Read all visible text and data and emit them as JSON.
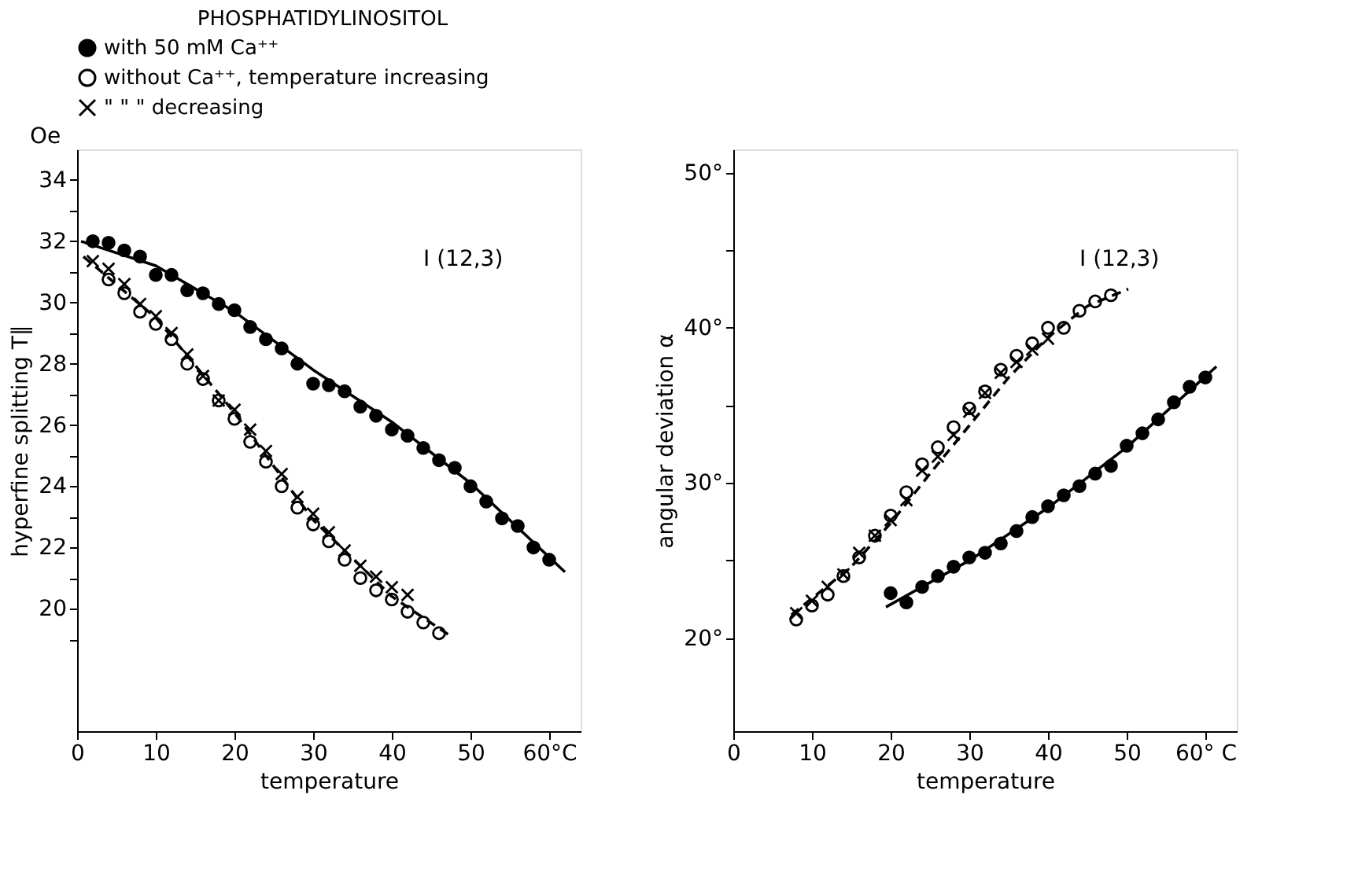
{
  "chart_data": [
    {
      "type": "scatter",
      "legend_title": "PHOSPHATIDYLINOSITOL",
      "legend": "top",
      "xlabel": "temperature",
      "ylabel": "hyperfine splitting T∥",
      "annotations": [
        "Oe",
        "I (12,3)"
      ],
      "grid": false,
      "xlim": [
        0,
        64
      ],
      "xticks": [
        0,
        10,
        20,
        30,
        40,
        50,
        {
          "value": 60,
          "label": "60°C"
        }
      ],
      "ylim": [
        16,
        35
      ],
      "yticks": [
        {
          "value": 19,
          "label": null
        },
        20,
        {
          "value": 21,
          "label": null
        },
        22,
        {
          "value": 23,
          "label": null
        },
        24,
        {
          "value": 25,
          "label": null
        },
        26,
        {
          "value": 27,
          "label": null
        },
        28,
        {
          "value": 29,
          "label": null
        },
        30,
        {
          "value": 31,
          "label": null
        },
        32,
        {
          "value": 33,
          "label": null
        },
        34
      ],
      "series": [
        {
          "type": "line",
          "line_style": "solid",
          "color": "#000000",
          "x": [
            0.5,
            10,
            20,
            30,
            40,
            50,
            62
          ],
          "values": [
            32.0,
            31.2,
            29.7,
            27.8,
            26.1,
            24.1,
            21.2
          ]
        },
        {
          "type": "line",
          "line_style": "dashed",
          "color": "#000000",
          "x": [
            0.8,
            10,
            20,
            30,
            40,
            47.5
          ],
          "values": [
            31.5,
            29.5,
            26.4,
            22.9,
            20.4,
            19.1
          ]
        },
        {
          "name": "with 50 mM Ca⁺⁺",
          "marker": "circle",
          "color": "#000000",
          "x": [
            2,
            4,
            6,
            8,
            10,
            12,
            14,
            16,
            18,
            20,
            22,
            24,
            26,
            28,
            30,
            32,
            34,
            36,
            38,
            40,
            42,
            44,
            46,
            48,
            50,
            52,
            54,
            56,
            58,
            60
          ],
          "values": [
            32.0,
            31.95,
            31.7,
            31.5,
            30.9,
            30.9,
            30.4,
            30.3,
            29.95,
            29.75,
            29.2,
            28.8,
            28.5,
            28.0,
            27.35,
            27.3,
            27.1,
            26.6,
            26.3,
            25.85,
            25.65,
            25.25,
            24.85,
            24.6,
            24.0,
            23.5,
            22.95,
            22.7,
            22.0,
            21.6
          ]
        },
        {
          "name": "without Ca⁺⁺, temperature   increasing",
          "marker": "circle-open",
          "color": "#000000",
          "x": [
            4,
            6,
            8,
            10,
            12,
            14,
            16,
            18,
            20,
            22,
            24,
            26,
            28,
            30,
            32,
            34,
            36,
            38,
            40,
            42,
            44,
            46
          ],
          "values": [
            30.75,
            30.3,
            29.7,
            29.3,
            28.8,
            28.0,
            27.5,
            26.8,
            26.2,
            25.45,
            24.8,
            24.0,
            23.3,
            22.75,
            22.2,
            21.6,
            21.0,
            20.6,
            20.3,
            19.9,
            19.55,
            19.2
          ]
        },
        {
          "name": "\"               \"                          \"         decreasing",
          "marker": "cross",
          "color": "#000000",
          "x": [
            2,
            4,
            6,
            8,
            10,
            12,
            14,
            16,
            18,
            20,
            22,
            24,
            26,
            28,
            30,
            32,
            34,
            36,
            38,
            40,
            42
          ],
          "values": [
            31.35,
            31.1,
            30.6,
            29.95,
            29.55,
            29.0,
            28.3,
            27.6,
            26.8,
            26.5,
            25.85,
            25.15,
            24.4,
            23.65,
            23.1,
            22.5,
            21.9,
            21.4,
            21.05,
            20.7,
            20.45
          ]
        }
      ]
    },
    {
      "type": "scatter",
      "xlabel": "temperature",
      "ylabel": "angular deviation α",
      "annotations": [
        "I (12,3)"
      ],
      "grid": false,
      "xlim": [
        0,
        64
      ],
      "xticks": [
        0,
        10,
        20,
        30,
        40,
        50,
        {
          "value": 60,
          "label": "60° C"
        }
      ],
      "ylim": [
        14,
        51.5
      ],
      "yticks": [
        {
          "value": 20,
          "label": "20°"
        },
        {
          "value": 25,
          "label": null
        },
        {
          "value": 30,
          "label": "30°"
        },
        {
          "value": 35,
          "label": null
        },
        {
          "value": 40,
          "label": "40°"
        },
        {
          "value": 45,
          "label": null
        },
        {
          "value": 50,
          "label": "50°"
        }
      ],
      "series": [
        {
          "type": "line",
          "line_style": "solid",
          "color": "#000000",
          "x": [
            19.4,
            30,
            40,
            50,
            61.4
          ],
          "values": [
            22.0,
            25.0,
            28.4,
            32.3,
            37.5
          ]
        },
        {
          "type": "line",
          "line_style": "dashed",
          "color": "#000000",
          "x": [
            7.4,
            15,
            20,
            25,
            30,
            35,
            40,
            45,
            50.2
          ],
          "values": [
            21.5,
            24.6,
            27.4,
            30.6,
            33.7,
            36.8,
            39.4,
            41.4,
            42.5
          ]
        },
        {
          "marker": "circle",
          "color": "#000000",
          "x": [
            20,
            22,
            24,
            26,
            28,
            30,
            32,
            34,
            36,
            38,
            40,
            42,
            44,
            46,
            48,
            50,
            52,
            54,
            56,
            58,
            60
          ],
          "values": [
            22.9,
            22.3,
            23.3,
            24.0,
            24.6,
            25.2,
            25.5,
            26.1,
            26.9,
            27.8,
            28.5,
            29.2,
            29.8,
            30.6,
            31.1,
            32.4,
            33.2,
            34.1,
            35.2,
            36.2,
            36.8
          ]
        },
        {
          "marker": "circle-open",
          "color": "#000000",
          "x": [
            8,
            10,
            12,
            14,
            16,
            18,
            20,
            22,
            24,
            26,
            28,
            30,
            32,
            34,
            36,
            38,
            40,
            42,
            44,
            46,
            48
          ],
          "values": [
            21.2,
            22.1,
            22.8,
            24.0,
            25.2,
            26.6,
            27.9,
            29.4,
            31.2,
            32.3,
            33.6,
            34.8,
            35.9,
            37.3,
            38.2,
            39.0,
            40.0,
            40.0,
            41.1,
            41.7,
            42.1
          ]
        },
        {
          "marker": "cross",
          "color": "#000000",
          "x": [
            8,
            10,
            12,
            14,
            16,
            18,
            20,
            22,
            24,
            26,
            28,
            30,
            32,
            34,
            36,
            38,
            40
          ],
          "values": [
            21.6,
            22.4,
            23.3,
            24.1,
            25.5,
            26.6,
            27.6,
            28.9,
            30.8,
            31.7,
            33.1,
            34.6,
            35.8,
            37.1,
            37.8,
            38.6,
            39.3
          ]
        }
      ]
    }
  ]
}
